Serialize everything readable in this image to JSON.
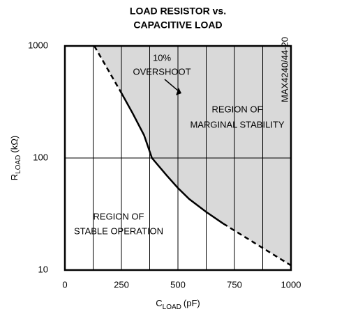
{
  "chart_data": {
    "type": "line",
    "title": [
      "LOAD RESISTOR vs.",
      "CAPACITIVE LOAD"
    ],
    "y_label": {
      "main": "R",
      "sub": "LOAD",
      "unit": "(kΩ)"
    },
    "x_label": {
      "main": "C",
      "sub": "LOAD",
      "unit": "(pF)"
    },
    "xlim": [
      0,
      1000
    ],
    "xticks": [
      0,
      250,
      500,
      750,
      1000
    ],
    "xgrid": [
      125,
      250,
      375,
      500,
      625,
      750,
      875
    ],
    "ylim": [
      10,
      1000
    ],
    "yticks": [
      10,
      100,
      1000
    ],
    "ygrid": [
      100
    ],
    "log_y": true,
    "series": [
      {
        "x": [
          130,
          250
        ],
        "values": [
          1000,
          380
        ],
        "dashed": true,
        "color": "#000000"
      },
      {
        "x": [
          250,
          300,
          350,
          385,
          450,
          500,
          550,
          625,
          700
        ],
        "values": [
          380,
          250,
          160,
          100,
          70,
          54,
          43,
          33,
          26
        ],
        "dashed": false,
        "color": "#000000"
      },
      {
        "x": [
          700,
          1000
        ],
        "values": [
          26,
          11
        ],
        "dashed": true,
        "color": "#000000"
      }
    ],
    "region_color": "#d9d9d9",
    "annotations": [
      "10%",
      "OVERSHOOT",
      "REGION OF",
      "MARGINAL STABILITY",
      "REGION OF",
      "STABLE OPERATION"
    ],
    "side_note": "MAX4240/44-20"
  }
}
